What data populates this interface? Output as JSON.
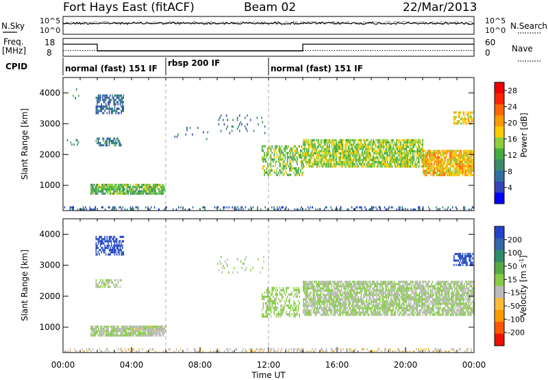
{
  "header": {
    "station": "Fort Hays East (fitACF)",
    "beam": "Beam 02",
    "date": "22/Mar/2013"
  },
  "noise_panel": {
    "left_label": "N.Sky",
    "right_label": "N.Search",
    "left_ticks": [
      "10^5",
      "10^0"
    ],
    "right_ticks": [
      "10^5",
      "10^0"
    ]
  },
  "freq_panel": {
    "left_label_line1": "Freq.",
    "left_label_line2": "[MHz]",
    "right_label": "Nave",
    "left_ticks": [
      "18",
      "8"
    ],
    "right_ticks": [
      "60",
      "0"
    ],
    "freq_steps": [
      {
        "t": 0,
        "mhz": 15.5
      },
      {
        "t": 2.0,
        "mhz": 10.2
      },
      {
        "t": 14.0,
        "mhz": 15.5
      },
      {
        "t": 24,
        "mhz": 15.5
      }
    ],
    "nave_level": 24
  },
  "cpid": {
    "label": "CPID",
    "segments": [
      {
        "start": 0,
        "end": 6,
        "name": "normal (fast) 151 IF"
      },
      {
        "start": 6,
        "end": 12,
        "name": "rbsp 200 IF"
      },
      {
        "start": 12,
        "end": 24,
        "name": "normal (fast) 151 IF"
      }
    ]
  },
  "time_axis": {
    "label": "Time UT",
    "ticks": [
      "00:00",
      "04:00",
      "08:00",
      "12:00",
      "16:00",
      "20:00",
      "00:00"
    ],
    "range_hours": [
      0,
      24
    ]
  },
  "chart_data": [
    {
      "type": "heatmap",
      "title": "",
      "ylabel": "Slant Range [km]",
      "xlabel": "",
      "ylim": [
        180,
        4500
      ],
      "y_ticks": [
        "1000",
        "2000",
        "3000",
        "4000"
      ],
      "colorbar": {
        "label": "Power [dB]",
        "ticks": [
          "4",
          "8",
          "12",
          "16",
          "20",
          "24",
          "28"
        ],
        "range": [
          0,
          30
        ],
        "colors": [
          "#0000ff",
          "#3344bb",
          "#2f6f9f",
          "#3a8a6a",
          "#3fae3f",
          "#8ccf3a",
          "#ffcc00",
          "#ff9900",
          "#ff6600",
          "#ff2200",
          "#ee0000"
        ]
      },
      "regions": [
        {
          "t0": 0.1,
          "t1": 0.9,
          "r0": 2300,
          "r1": 2500,
          "val": 8,
          "density": 0.25
        },
        {
          "t0": 0.5,
          "t1": 1.0,
          "r0": 3850,
          "r1": 4150,
          "val": 8,
          "density": 0.2
        },
        {
          "t0": 1.9,
          "t1": 3.5,
          "r0": 3350,
          "r1": 3950,
          "val": 7,
          "density": 0.6
        },
        {
          "t0": 1.9,
          "t1": 3.4,
          "r0": 2300,
          "r1": 2550,
          "val": 8,
          "density": 0.55
        },
        {
          "t0": 1.6,
          "t1": 5.9,
          "r0": 700,
          "r1": 1050,
          "val": 13,
          "density": 0.85
        },
        {
          "t0": 6.5,
          "t1": 8.5,
          "r0": 2500,
          "r1": 2900,
          "val": 7,
          "density": 0.08
        },
        {
          "t0": 9.0,
          "t1": 11.8,
          "r0": 2700,
          "r1": 3300,
          "val": 7,
          "density": 0.1
        },
        {
          "t0": 11.6,
          "t1": 14.0,
          "r0": 1350,
          "r1": 2300,
          "val": 14,
          "density": 0.55
        },
        {
          "t0": 14.0,
          "t1": 21.0,
          "r0": 1600,
          "r1": 2500,
          "val": 15,
          "density": 0.8
        },
        {
          "t0": 21.0,
          "t1": 24.0,
          "r0": 1350,
          "r1": 2150,
          "val": 19,
          "density": 0.85
        },
        {
          "t0": 22.8,
          "t1": 23.9,
          "r0": 3000,
          "r1": 3400,
          "val": 18,
          "density": 0.6
        },
        {
          "t0": 0.0,
          "t1": 24.0,
          "r0": 180,
          "r1": 320,
          "val": 6,
          "density": 0.3
        }
      ]
    },
    {
      "type": "heatmap",
      "title": "",
      "ylabel": "Slant Range [km]",
      "xlabel": "Time UT",
      "ylim": [
        180,
        4500
      ],
      "y_ticks": [
        "1000",
        "2000",
        "3000",
        "4000"
      ],
      "colorbar": {
        "label": "Velocity [m s^-1]",
        "ticks": [
          "200",
          "100",
          "50",
          "15",
          "-15",
          "-50",
          "-100",
          "-200"
        ],
        "range": [
          -250,
          250
        ],
        "colors": [
          "#2244cc",
          "#3366aa",
          "#2f8a6a",
          "#55aa44",
          "#88cc44",
          "#bbbbbb",
          "#ffbb33",
          "#ff9900",
          "#ff5500",
          "#ee1100"
        ]
      },
      "regions": [
        {
          "t0": 1.9,
          "t1": 3.5,
          "r0": 3350,
          "r1": 3950,
          "val": 220,
          "density": 0.6
        },
        {
          "t0": 1.9,
          "t1": 3.4,
          "r0": 2300,
          "r1": 2550,
          "val": 0,
          "density": 0.45
        },
        {
          "t0": 1.6,
          "t1": 5.9,
          "r0": 700,
          "r1": 1050,
          "val": -5,
          "density": 0.85
        },
        {
          "t0": 4.0,
          "t1": 6.0,
          "r0": 850,
          "r1": 1050,
          "val": -40,
          "density": 0.4
        },
        {
          "t0": 9.0,
          "t1": 11.8,
          "r0": 2700,
          "r1": 3300,
          "val": 0,
          "density": 0.08
        },
        {
          "t0": 11.6,
          "t1": 13.8,
          "r0": 1350,
          "r1": 2300,
          "val": 20,
          "density": 0.45
        },
        {
          "t0": 14.0,
          "t1": 24.0,
          "r0": 1400,
          "r1": 2500,
          "val": 0,
          "density": 0.8
        },
        {
          "t0": 22.8,
          "t1": 23.9,
          "r0": 3000,
          "r1": 3400,
          "val": 220,
          "density": 0.6
        },
        {
          "t0": 0.0,
          "t1": 24.0,
          "r0": 180,
          "r1": 320,
          "val": -40,
          "density": 0.3
        }
      ]
    }
  ]
}
